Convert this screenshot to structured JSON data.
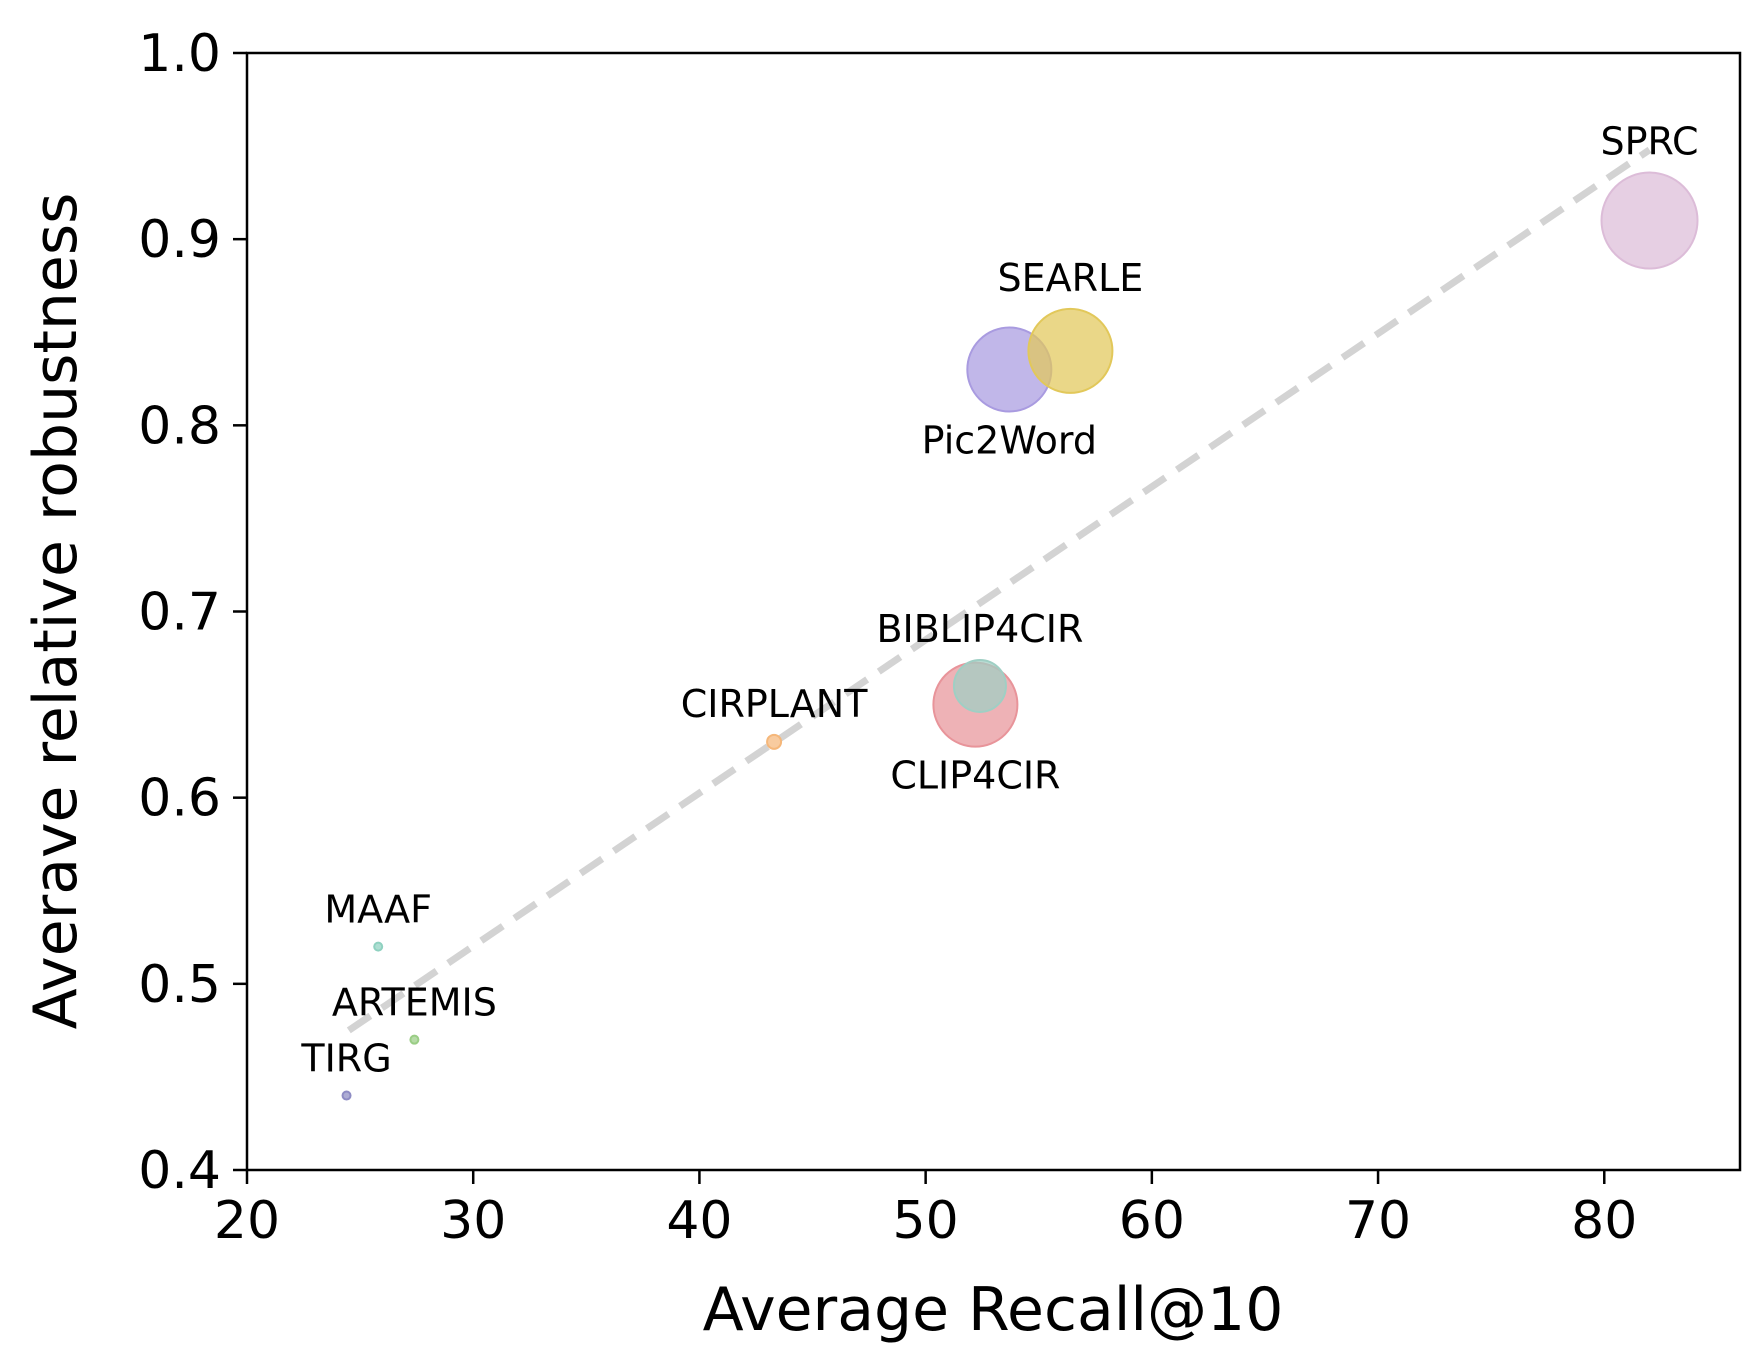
{
  "chart_data": {
    "type": "scatter",
    "title": "",
    "xlabel": "Average Recall@10",
    "ylabel": "Averave relative robustness",
    "xlim": [
      20,
      86
    ],
    "ylim": [
      0.4,
      1.0
    ],
    "x_ticks": [
      20,
      30,
      40,
      50,
      60,
      70,
      80
    ],
    "y_ticks": [
      0.4,
      0.5,
      0.6,
      0.7,
      0.8,
      0.9,
      1.0
    ],
    "x_tick_labels": [
      "20",
      "30",
      "40",
      "50",
      "60",
      "70",
      "80"
    ],
    "y_tick_labels": [
      "0.4",
      "0.5",
      "0.6",
      "0.7",
      "0.8",
      "0.9",
      "1.0"
    ],
    "grid": false,
    "trend_line": {
      "style": "dashed",
      "color": "#d3d3d3",
      "x": [
        24.5,
        82
      ],
      "y": [
        0.475,
        0.948
      ]
    },
    "points": [
      {
        "name": "TIRG",
        "x": 24.4,
        "y": 0.44,
        "color": "#8e8cc4",
        "size": "tiny",
        "label_pos": "above"
      },
      {
        "name": "MAAF",
        "x": 25.8,
        "y": 0.52,
        "color": "#8fd1c0",
        "size": "tiny",
        "label_pos": "above"
      },
      {
        "name": "ARTEMIS",
        "x": 27.4,
        "y": 0.47,
        "color": "#9acd85",
        "size": "tiny",
        "label_pos": "above"
      },
      {
        "name": "CIRPLANT",
        "x": 43.3,
        "y": 0.63,
        "color": "#f5b77a",
        "size": "small",
        "label_pos": "above"
      },
      {
        "name": "CLIP4CIR",
        "x": 52.2,
        "y": 0.65,
        "color": "#e8949a",
        "size": "large",
        "label_pos": "below"
      },
      {
        "name": "BIBLIP4CIR",
        "x": 52.4,
        "y": 0.66,
        "color": "#9fcfc4",
        "size": "medium",
        "label_pos": "above"
      },
      {
        "name": "Pic2Word",
        "x": 53.7,
        "y": 0.83,
        "color": "#a99be0",
        "size": "large",
        "label_pos": "below"
      },
      {
        "name": "SEARLE",
        "x": 56.4,
        "y": 0.84,
        "color": "#e2c85a",
        "size": "large",
        "label_pos": "above"
      },
      {
        "name": "SPRC",
        "x": 82.0,
        "y": 0.91,
        "color": "#dcbcd8",
        "size": "xlarge",
        "label_pos": "above"
      }
    ]
  }
}
